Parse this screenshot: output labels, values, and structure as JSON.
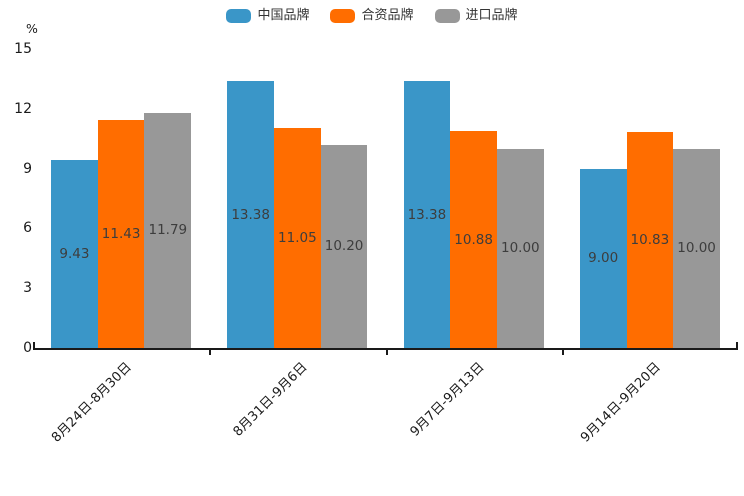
{
  "legend": {
    "items": [
      {
        "label": "中国品牌",
        "color": "#3A96C8"
      },
      {
        "label": "合资品牌",
        "color": "#FF6D00"
      },
      {
        "label": "进口品牌",
        "color": "#989898"
      }
    ]
  },
  "y_axis": {
    "unit_label": "%",
    "tick_labels": [
      "0",
      "3",
      "6",
      "9",
      "12",
      "15"
    ]
  },
  "chart_data": {
    "type": "bar",
    "title": "",
    "xlabel": "",
    "ylabel": "%",
    "categories": [
      "8月24日-8月30日",
      "8月31日-9月6日",
      "9月7日-9月13日",
      "9月14日-9月20日"
    ],
    "series": [
      {
        "name": "中国品牌",
        "color": "#3A96C8",
        "values": [
          9.43,
          13.38,
          13.38,
          9.0
        ]
      },
      {
        "name": "合资品牌",
        "color": "#FF6D00",
        "values": [
          11.43,
          11.05,
          10.88,
          10.83
        ]
      },
      {
        "name": "进口品牌",
        "color": "#989898",
        "values": [
          11.79,
          10.2,
          10.0,
          10.0
        ]
      }
    ],
    "ylim": [
      0,
      15
    ],
    "ytick_step": 3,
    "grid": false,
    "legend_position": "top-center",
    "value_labels": "inside-center",
    "value_label_decimals": 2,
    "xtick_label_rotation_deg": 45,
    "colors": {
      "axis": "#1a1a1a",
      "tick_text": "#1a1a1a",
      "value_label_text": "#3d3d3d"
    }
  }
}
